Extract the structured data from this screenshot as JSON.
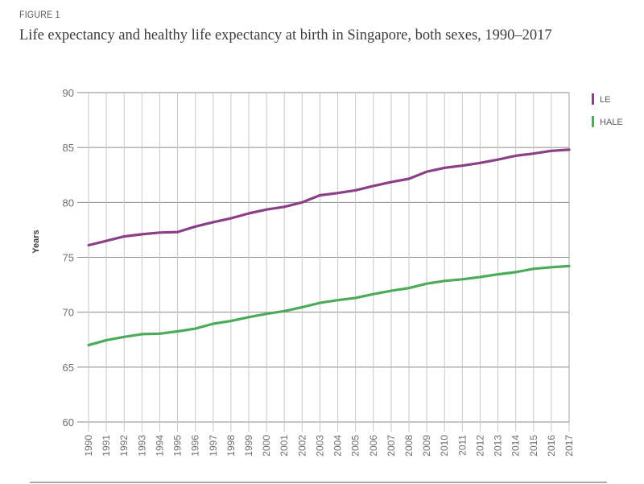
{
  "figure_label": "FIGURE 1",
  "title": "Life expectancy and healthy life expectancy at birth in Singapore, both sexes, 1990–2017",
  "chart_data": {
    "type": "line",
    "title": "Life expectancy and healthy life expectancy at birth in Singapore, both sexes, 1990–2017",
    "xlabel": "",
    "ylabel": "Years",
    "ylim": [
      60,
      90
    ],
    "yticks": [
      60,
      65,
      70,
      75,
      80,
      85,
      90
    ],
    "grid": true,
    "legend_position": "top-right",
    "x": [
      1990,
      1991,
      1992,
      1993,
      1994,
      1995,
      1996,
      1997,
      1998,
      1999,
      2000,
      2001,
      2002,
      2003,
      2004,
      2005,
      2006,
      2007,
      2008,
      2009,
      2010,
      2011,
      2012,
      2013,
      2014,
      2015,
      2016,
      2017
    ],
    "series": [
      {
        "name": "LE",
        "color": "#8b3f87",
        "values": [
          76.1,
          76.5,
          76.9,
          77.1,
          77.25,
          77.3,
          77.8,
          78.2,
          78.55,
          79.0,
          79.35,
          79.6,
          80.0,
          80.65,
          80.85,
          81.1,
          81.5,
          81.85,
          82.15,
          82.8,
          83.15,
          83.35,
          83.6,
          83.9,
          84.25,
          84.45,
          84.7,
          84.8
        ]
      },
      {
        "name": "HALE",
        "color": "#4cab5a",
        "values": [
          67.0,
          67.45,
          67.75,
          68.0,
          68.05,
          68.25,
          68.5,
          68.95,
          69.2,
          69.55,
          69.85,
          70.1,
          70.45,
          70.85,
          71.1,
          71.3,
          71.65,
          71.95,
          72.2,
          72.6,
          72.85,
          73.0,
          73.2,
          73.45,
          73.65,
          73.95,
          74.1,
          74.2
        ]
      }
    ]
  }
}
